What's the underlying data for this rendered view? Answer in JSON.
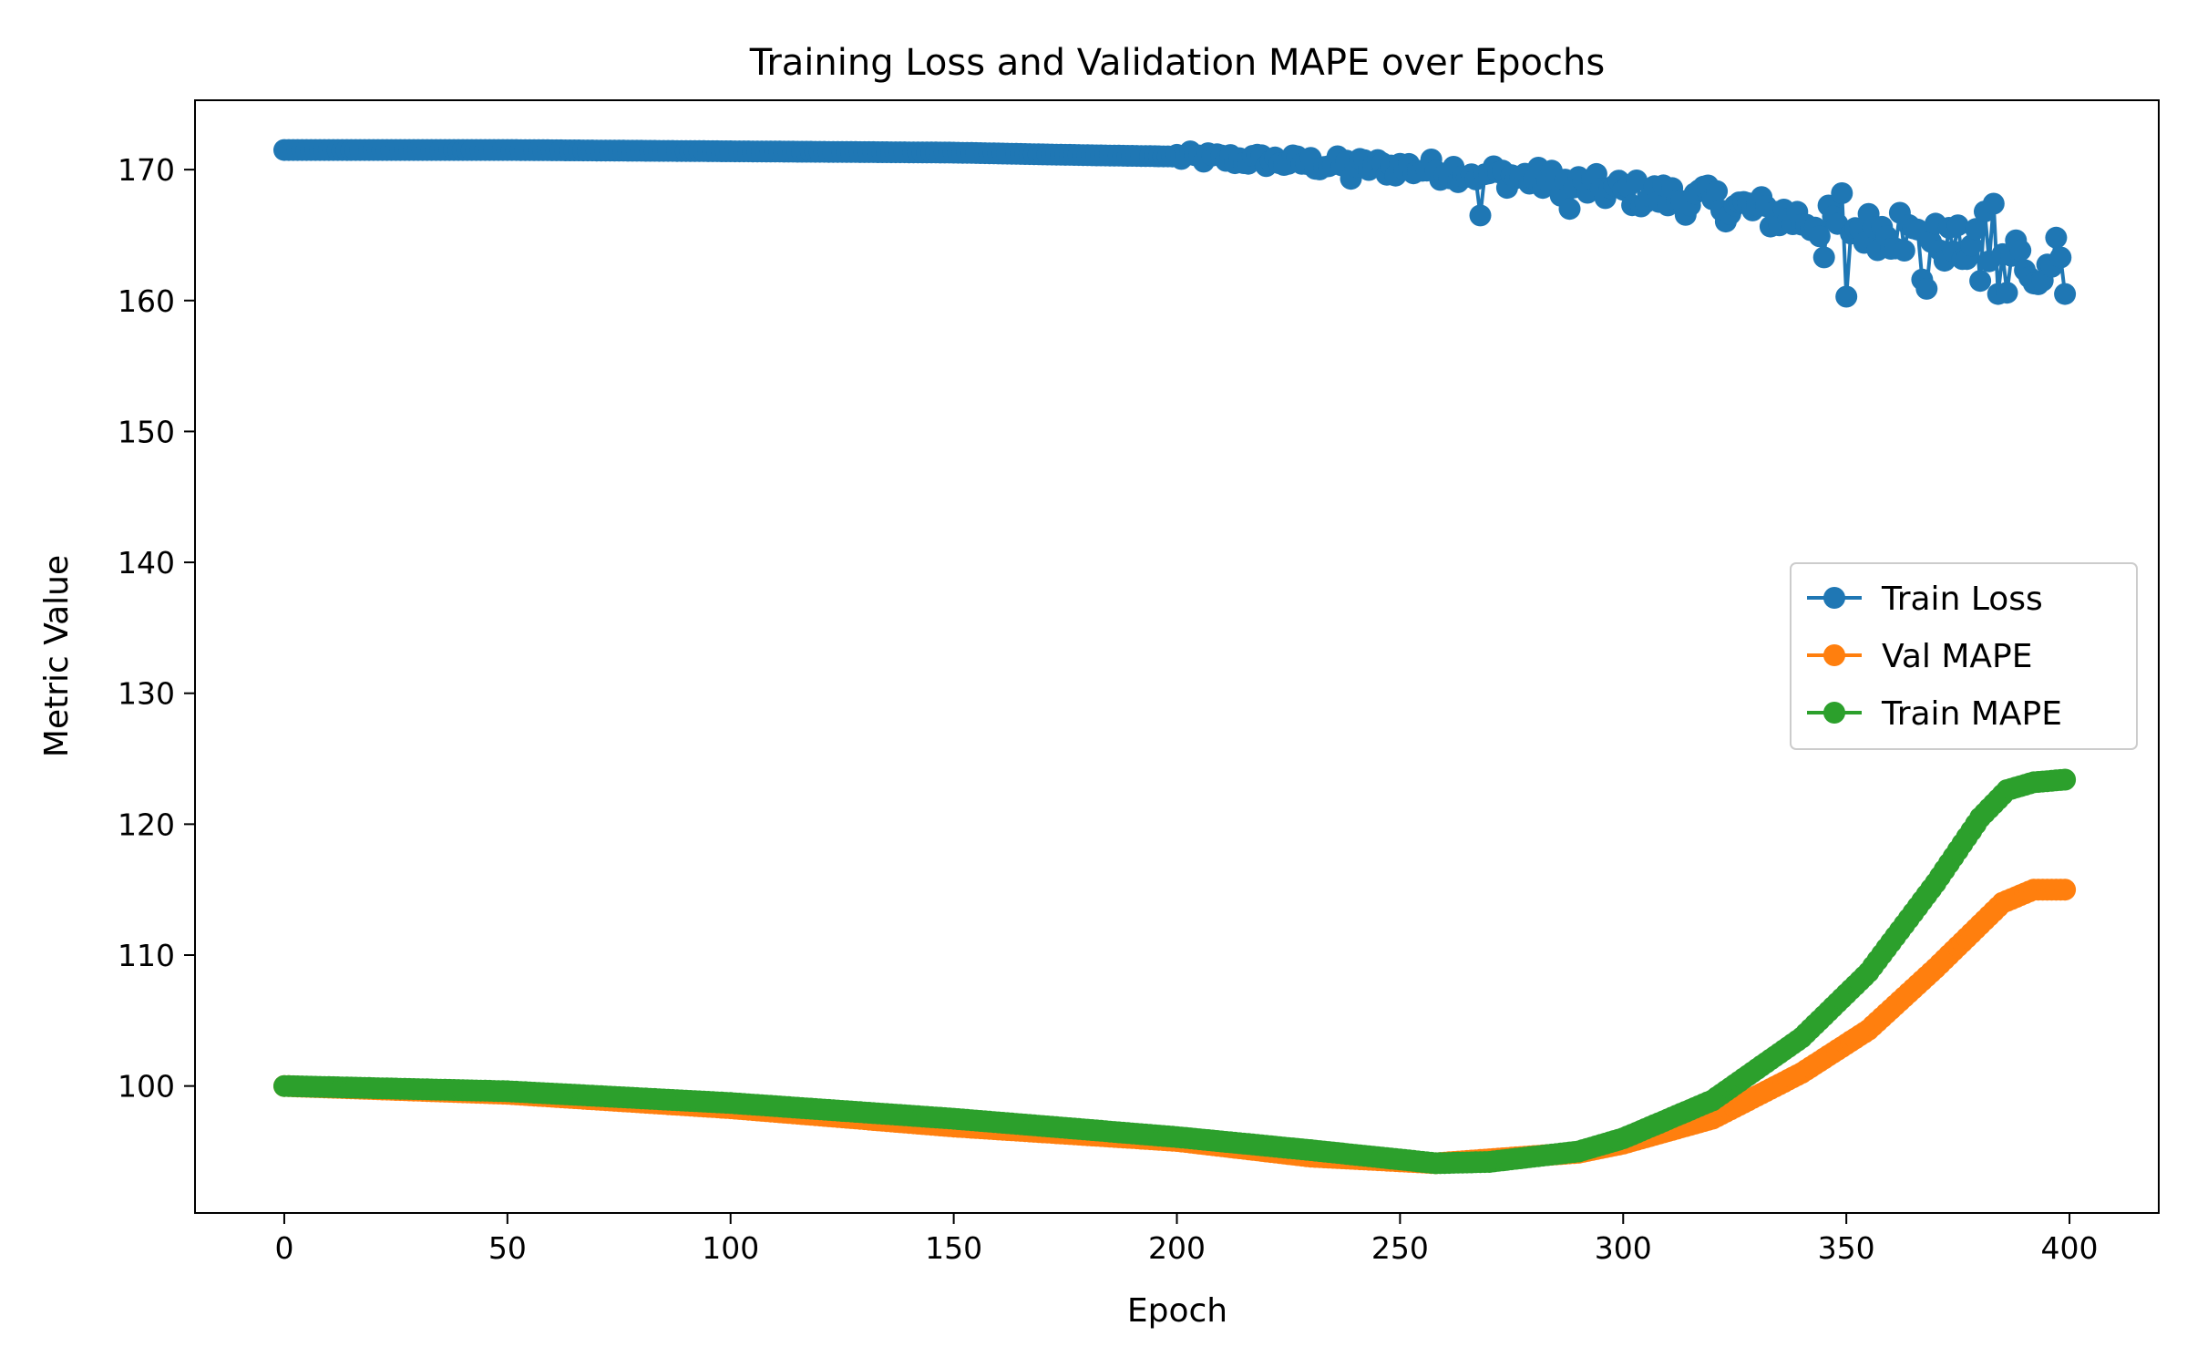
{
  "chart_data": {
    "type": "line",
    "title": "Training Loss and Validation MAPE over Epochs",
    "xlabel": "Epoch",
    "ylabel": "Metric Value",
    "xlim": [
      -20,
      420
    ],
    "ylim": [
      90.3,
      175.3
    ],
    "xticks": [
      0,
      50,
      100,
      150,
      200,
      250,
      300,
      350,
      400
    ],
    "yticks": [
      100,
      110,
      120,
      130,
      140,
      150,
      160,
      170
    ],
    "grid": false,
    "legend_position": "center-right",
    "marker": "circle",
    "series": [
      {
        "name": "Train Loss",
        "color": "#1f77b4",
        "keypoints": [
          [
            0,
            171.5
          ],
          [
            50,
            171.5
          ],
          [
            100,
            171.4
          ],
          [
            150,
            171.3
          ],
          [
            180,
            171.1
          ],
          [
            200,
            171.0
          ],
          [
            220,
            170.7
          ],
          [
            240,
            170.3
          ],
          [
            260,
            170.0
          ],
          [
            280,
            169.3
          ],
          [
            300,
            168.3
          ],
          [
            320,
            167.5
          ],
          [
            340,
            166.2
          ],
          [
            360,
            165.2
          ],
          [
            380,
            163.8
          ],
          [
            399,
            162.5
          ]
        ],
        "noise_start": 200,
        "noise_amplitude": 1.4,
        "outliers": [
          [
            239,
            169.3
          ],
          [
            268,
            166.5
          ],
          [
            288,
            167.0
          ],
          [
            318,
            168.7
          ],
          [
            345,
            163.3
          ],
          [
            349,
            168.2
          ],
          [
            350,
            160.3
          ],
          [
            356,
            165.6
          ],
          [
            362,
            166.7
          ],
          [
            367,
            161.6
          ],
          [
            368,
            160.9
          ],
          [
            380,
            161.5
          ],
          [
            381,
            166.8
          ],
          [
            383,
            167.4
          ],
          [
            384,
            160.5
          ],
          [
            386,
            160.6
          ],
          [
            388,
            164.6
          ],
          [
            392,
            161.3
          ],
          [
            397,
            164.8
          ],
          [
            399,
            160.5
          ]
        ]
      },
      {
        "name": "Val MAPE",
        "color": "#ff7f0e",
        "keypoints": [
          [
            0,
            100.0
          ],
          [
            50,
            99.4
          ],
          [
            100,
            98.3
          ],
          [
            150,
            96.9
          ],
          [
            200,
            95.8
          ],
          [
            230,
            94.6
          ],
          [
            258,
            94.1
          ],
          [
            270,
            94.4
          ],
          [
            290,
            94.9
          ],
          [
            300,
            95.6
          ],
          [
            320,
            97.5
          ],
          [
            340,
            101.0
          ],
          [
            355,
            104.3
          ],
          [
            370,
            109.0
          ],
          [
            385,
            114.0
          ],
          [
            392,
            115.0
          ],
          [
            399,
            115.0
          ]
        ]
      },
      {
        "name": "Train MAPE",
        "color": "#2ca02c",
        "keypoints": [
          [
            0,
            100.0
          ],
          [
            50,
            99.6
          ],
          [
            100,
            98.7
          ],
          [
            150,
            97.5
          ],
          [
            200,
            96.1
          ],
          [
            230,
            95.1
          ],
          [
            258,
            94.1
          ],
          [
            270,
            94.2
          ],
          [
            290,
            95.0
          ],
          [
            300,
            96.0
          ],
          [
            320,
            98.9
          ],
          [
            340,
            103.7
          ],
          [
            355,
            108.7
          ],
          [
            370,
            115.5
          ],
          [
            380,
            120.5
          ],
          [
            386,
            122.6
          ],
          [
            392,
            123.2
          ],
          [
            399,
            123.4
          ]
        ]
      }
    ]
  }
}
